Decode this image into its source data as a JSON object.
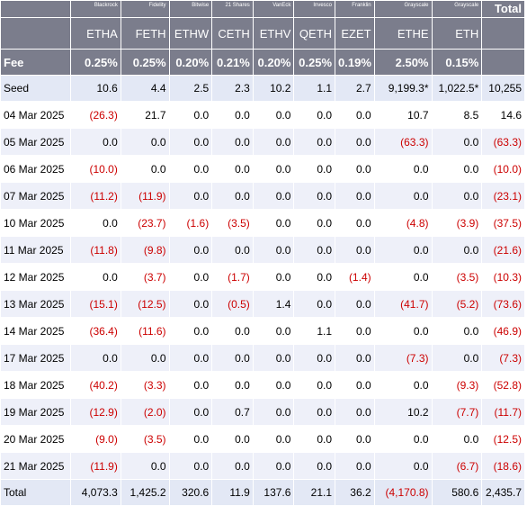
{
  "header": {
    "issuers": [
      "Blackrock",
      "Fidelity",
      "Bitwise",
      "21 Shares",
      "VanEck",
      "Invesco",
      "Franklin",
      "Grayscale",
      "Grayscale"
    ],
    "total_label": "Total",
    "tickers": [
      "ETHA",
      "FETH",
      "ETHW",
      "CETH",
      "ETHV",
      "QETH",
      "EZET",
      "ETHE",
      "ETH"
    ],
    "fee_label": "Fee",
    "fees": [
      "0.25%",
      "0.25%",
      "0.20%",
      "0.21%",
      "0.20%",
      "0.25%",
      "0.19%",
      "2.50%",
      "0.15%"
    ]
  },
  "seed": {
    "label": "Seed",
    "values": [
      "10.6",
      "4.4",
      "2.5",
      "2.3",
      "10.2",
      "1.1",
      "2.7",
      "9,199.3*",
      "1,022.5*",
      "10,255"
    ]
  },
  "rows": [
    {
      "date": "04 Mar 2025",
      "values": [
        "(26.3)",
        "21.7",
        "0.0",
        "0.0",
        "0.0",
        "0.0",
        "0.0",
        "10.7",
        "8.5",
        "14.6"
      ]
    },
    {
      "date": "05 Mar 2025",
      "values": [
        "0.0",
        "0.0",
        "0.0",
        "0.0",
        "0.0",
        "0.0",
        "0.0",
        "(63.3)",
        "0.0",
        "(63.3)"
      ]
    },
    {
      "date": "06 Mar 2025",
      "values": [
        "(10.0)",
        "0.0",
        "0.0",
        "0.0",
        "0.0",
        "0.0",
        "0.0",
        "0.0",
        "0.0",
        "(10.0)"
      ]
    },
    {
      "date": "07 Mar 2025",
      "values": [
        "(11.2)",
        "(11.9)",
        "0.0",
        "0.0",
        "0.0",
        "0.0",
        "0.0",
        "0.0",
        "0.0",
        "(23.1)"
      ]
    },
    {
      "date": "10 Mar 2025",
      "values": [
        "0.0",
        "(23.7)",
        "(1.6)",
        "(3.5)",
        "0.0",
        "0.0",
        "0.0",
        "(4.8)",
        "(3.9)",
        "(37.5)"
      ]
    },
    {
      "date": "11 Mar 2025",
      "values": [
        "(11.8)",
        "(9.8)",
        "0.0",
        "0.0",
        "0.0",
        "0.0",
        "0.0",
        "0.0",
        "0.0",
        "(21.6)"
      ]
    },
    {
      "date": "12 Mar 2025",
      "values": [
        "0.0",
        "(3.7)",
        "0.0",
        "(1.7)",
        "0.0",
        "0.0",
        "(1.4)",
        "0.0",
        "(3.5)",
        "(10.3)"
      ]
    },
    {
      "date": "13 Mar 2025",
      "values": [
        "(15.1)",
        "(12.5)",
        "0.0",
        "(0.5)",
        "1.4",
        "0.0",
        "0.0",
        "(41.7)",
        "(5.2)",
        "(73.6)"
      ]
    },
    {
      "date": "14 Mar 2025",
      "values": [
        "(36.4)",
        "(11.6)",
        "0.0",
        "0.0",
        "0.0",
        "1.1",
        "0.0",
        "0.0",
        "0.0",
        "(46.9)"
      ]
    },
    {
      "date": "17 Mar 2025",
      "values": [
        "0.0",
        "0.0",
        "0.0",
        "0.0",
        "0.0",
        "0.0",
        "0.0",
        "(7.3)",
        "0.0",
        "(7.3)"
      ]
    },
    {
      "date": "18 Mar 2025",
      "values": [
        "(40.2)",
        "(3.3)",
        "0.0",
        "0.0",
        "0.0",
        "0.0",
        "0.0",
        "0.0",
        "(9.3)",
        "(52.8)"
      ]
    },
    {
      "date": "19 Mar 2025",
      "values": [
        "(12.9)",
        "(2.0)",
        "0.0",
        "0.7",
        "0.0",
        "0.0",
        "0.0",
        "10.2",
        "(7.7)",
        "(11.7)"
      ]
    },
    {
      "date": "20 Mar 2025",
      "values": [
        "(9.0)",
        "(3.5)",
        "0.0",
        "0.0",
        "0.0",
        "0.0",
        "0.0",
        "0.0",
        "0.0",
        "(12.5)"
      ]
    },
    {
      "date": "21 Mar 2025",
      "values": [
        "(11.9)",
        "0.0",
        "0.0",
        "0.0",
        "0.0",
        "0.0",
        "0.0",
        "0.0",
        "(6.7)",
        "(18.6)"
      ]
    }
  ],
  "total": {
    "label": "Total",
    "values": [
      "4,073.3",
      "1,425.2",
      "320.6",
      "11.9",
      "137.6",
      "21.1",
      "36.2",
      "(4,170.8)",
      "580.6",
      "2,435.7"
    ]
  },
  "colors": {
    "header_bg": "#7b7d8c",
    "negative": "#cc0000",
    "stripe": "#eef0f9",
    "summary_bg": "#e3e8f5"
  }
}
